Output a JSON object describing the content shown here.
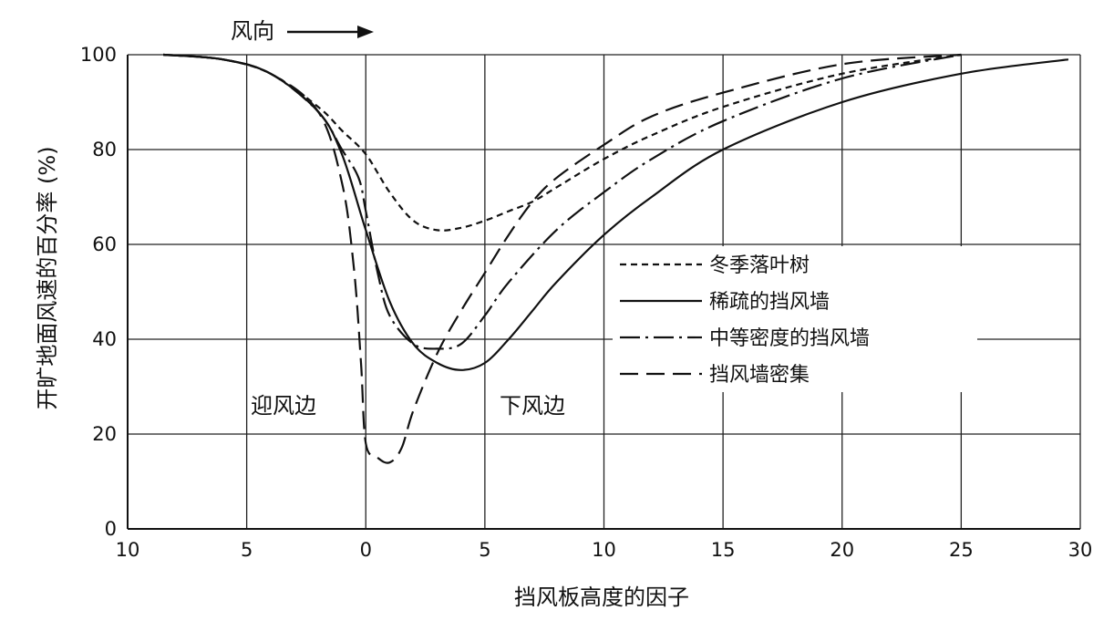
{
  "chart_data": {
    "type": "line",
    "title": "",
    "xlabel": "挡风板高度的因子",
    "ylabel": "开旷地面风速的百分率 (%)",
    "xlim": [
      -10,
      30
    ],
    "ylim": [
      0,
      100
    ],
    "x_ticks": [
      -10,
      -5,
      0,
      5,
      10,
      15,
      20,
      25,
      30
    ],
    "x_tick_labels": [
      "10",
      "5",
      "0",
      "5",
      "10",
      "15",
      "20",
      "25",
      "30"
    ],
    "y_ticks": [
      0,
      20,
      40,
      60,
      80,
      100
    ],
    "y_tick_labels": [
      "0",
      "20",
      "40",
      "60",
      "80",
      "100"
    ],
    "grid": true,
    "legend_position": "center-right",
    "annotations": {
      "wind_direction": "风向",
      "windward": "迎风边",
      "leeward": "下风边"
    },
    "series": [
      {
        "name": "冬季落叶树",
        "dash": "short-dash",
        "points": [
          [
            -8.5,
            100
          ],
          [
            -6,
            99
          ],
          [
            -4,
            96
          ],
          [
            -2,
            89
          ],
          [
            -1,
            84
          ],
          [
            0,
            79
          ],
          [
            1,
            71
          ],
          [
            2,
            65
          ],
          [
            3,
            63
          ],
          [
            4,
            63.5
          ],
          [
            5,
            65
          ],
          [
            6,
            67
          ],
          [
            7,
            69
          ],
          [
            8,
            72
          ],
          [
            10,
            78
          ],
          [
            12,
            83
          ],
          [
            15,
            89
          ],
          [
            20,
            96
          ],
          [
            25,
            100
          ]
        ]
      },
      {
        "name": "稀疏的挡风墙",
        "dash": "solid",
        "points": [
          [
            -8.5,
            100
          ],
          [
            -6,
            99
          ],
          [
            -4,
            96
          ],
          [
            -2,
            88
          ],
          [
            -1,
            79
          ],
          [
            0,
            63
          ],
          [
            1,
            48
          ],
          [
            2,
            39
          ],
          [
            3,
            35
          ],
          [
            4,
            33.5
          ],
          [
            5,
            35
          ],
          [
            6,
            40
          ],
          [
            7,
            46
          ],
          [
            8,
            52
          ],
          [
            10,
            62
          ],
          [
            12,
            70
          ],
          [
            15,
            80
          ],
          [
            20,
            90
          ],
          [
            25,
            96
          ],
          [
            29.5,
            99
          ]
        ]
      },
      {
        "name": "中等密度的挡风墙",
        "dash": "dash-dot",
        "points": [
          [
            -8.5,
            100
          ],
          [
            -6,
            99
          ],
          [
            -4,
            96
          ],
          [
            -2,
            88
          ],
          [
            -1,
            80
          ],
          [
            -0.3,
            74
          ],
          [
            0,
            67
          ],
          [
            0.5,
            54
          ],
          [
            1,
            45
          ],
          [
            2,
            39
          ],
          [
            3,
            38
          ],
          [
            4,
            39
          ],
          [
            5,
            45
          ],
          [
            6,
            52
          ],
          [
            8,
            63
          ],
          [
            10,
            71
          ],
          [
            12,
            78
          ],
          [
            15,
            86
          ],
          [
            20,
            95
          ],
          [
            25,
            100
          ]
        ]
      },
      {
        "name": "挡风墙密集",
        "dash": "long-dash",
        "points": [
          [
            -8.5,
            100
          ],
          [
            -6,
            99
          ],
          [
            -4,
            96
          ],
          [
            -2,
            88
          ],
          [
            -1,
            73
          ],
          [
            -0.5,
            55
          ],
          [
            -0.2,
            35
          ],
          [
            0,
            18
          ],
          [
            0.5,
            15
          ],
          [
            1,
            14
          ],
          [
            1.5,
            17
          ],
          [
            2,
            25
          ],
          [
            3,
            37
          ],
          [
            4,
            46
          ],
          [
            5,
            54
          ],
          [
            6,
            62
          ],
          [
            7,
            69
          ],
          [
            8,
            74
          ],
          [
            10,
            81
          ],
          [
            12,
            87
          ],
          [
            15,
            92
          ],
          [
            20,
            98
          ],
          [
            25,
            100
          ]
        ]
      }
    ]
  }
}
